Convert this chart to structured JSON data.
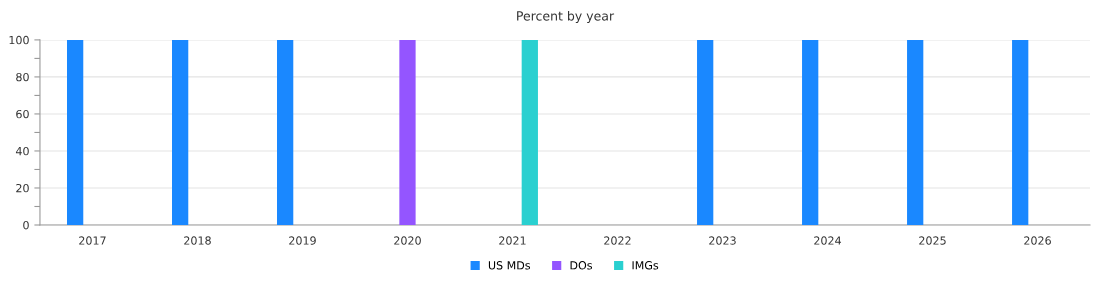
{
  "chart_data": {
    "type": "bar",
    "title": "Percent by year",
    "categories": [
      "2017",
      "2018",
      "2019",
      "2020",
      "2021",
      "2022",
      "2023",
      "2024",
      "2025",
      "2026"
    ],
    "series": [
      {
        "name": "US MDs",
        "color": "#1a88ff",
        "values": [
          100,
          100,
          100,
          0,
          0,
          0,
          100,
          100,
          100,
          100
        ]
      },
      {
        "name": "DOs",
        "color": "#9455ff",
        "values": [
          0,
          0,
          0,
          100,
          0,
          0,
          0,
          0,
          0,
          0
        ]
      },
      {
        "name": "IMGs",
        "color": "#2ad0d0",
        "values": [
          0,
          0,
          0,
          0,
          100,
          0,
          0,
          0,
          0,
          0
        ]
      }
    ],
    "ylim": [
      0,
      100
    ],
    "yticks": [
      0,
      {
        "value": 10,
        "label": null
      },
      20,
      {
        "value": 30,
        "label": null
      },
      40,
      {
        "value": 50,
        "label": null
      },
      60,
      {
        "value": 70,
        "label": null
      },
      80,
      {
        "value": 90,
        "label": null
      },
      100
    ],
    "grid": "y",
    "legend": "bottom"
  }
}
